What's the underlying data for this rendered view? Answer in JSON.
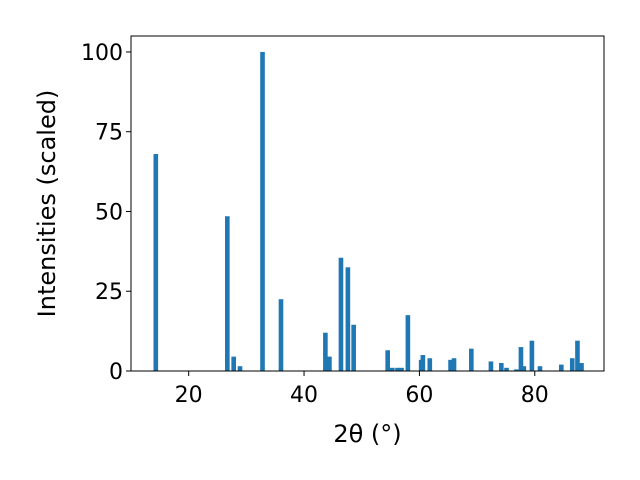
{
  "chart_data": {
    "type": "bar",
    "xlabel": "2θ (°)",
    "ylabel": "Intensities (scaled)",
    "xlim": [
      10,
      92
    ],
    "ylim": [
      0,
      105
    ],
    "xticks": [
      20,
      40,
      60,
      80
    ],
    "yticks": [
      0,
      25,
      50,
      75,
      100
    ],
    "bar_width": 0.8,
    "bar_color": "#1f77b4",
    "x": [
      14.3,
      26.7,
      27.8,
      28.9,
      32.8,
      36.0,
      43.7,
      44.4,
      46.4,
      47.6,
      48.6,
      54.5,
      55.3,
      56.2,
      56.9,
      58.0,
      60.3,
      60.6,
      61.8,
      65.4,
      66.0,
      69.0,
      72.4,
      74.2,
      75.1,
      76.8,
      77.6,
      78.1,
      79.5,
      80.9,
      84.6,
      86.5,
      87.4,
      88.1
    ],
    "values": [
      68,
      48.5,
      4.5,
      1.5,
      100,
      22.5,
      12,
      4.5,
      35.5,
      32.5,
      14.5,
      6.5,
      1,
      1,
      1,
      17.5,
      3.5,
      5,
      4,
      3.5,
      4,
      7,
      3,
      2.5,
      1,
      0.5,
      7.5,
      1.5,
      9.5,
      1.5,
      2,
      4,
      9.5,
      2.5
    ]
  }
}
